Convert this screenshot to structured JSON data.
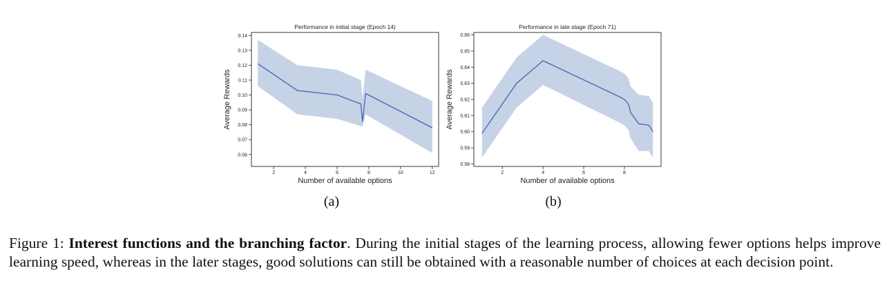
{
  "chart_data": [
    {
      "type": "line",
      "title": "Performance in initial stage (Epoch 14)",
      "xlabel": "Number of available options",
      "ylabel": "Average Rewards",
      "xlim": [
        0.6,
        12.4
      ],
      "ylim": [
        0.052,
        0.142
      ],
      "xticks": [
        2,
        4,
        6,
        8,
        10,
        12
      ],
      "yticks": [
        0.06,
        0.07,
        0.08,
        0.09,
        0.1,
        0.11,
        0.12,
        0.13,
        0.14
      ],
      "ytick_labels": [
        "0.06",
        "0.07",
        "0.08",
        "0.09",
        "0.10",
        "0.11",
        "0.12",
        "0.13",
        "0.14"
      ],
      "color": "#3f66b5",
      "band_color": "#c6d2e6",
      "series": [
        {
          "x": [
            1.0,
            3.5,
            6.0,
            7.5,
            7.6,
            7.8,
            12.0
          ],
          "y": [
            0.121,
            0.103,
            0.1,
            0.094,
            0.082,
            0.101,
            0.078
          ],
          "upper": [
            0.137,
            0.12,
            0.117,
            0.11,
            0.098,
            0.117,
            0.096
          ],
          "lower": [
            0.106,
            0.087,
            0.084,
            0.079,
            0.079,
            0.087,
            0.061
          ]
        }
      ],
      "grid": false
    },
    {
      "type": "line",
      "title": "Performance in late stage (Epoch 71)",
      "xlabel": "Number of available options",
      "ylabel": "Average Rewards",
      "xlim": [
        0.6,
        9.8
      ],
      "ylim": [
        0.5785,
        0.6615
      ],
      "xticks": [
        2,
        4,
        6,
        8
      ],
      "yticks": [
        0.58,
        0.59,
        0.6,
        0.61,
        0.62,
        0.63,
        0.64,
        0.65,
        0.66
      ],
      "ytick_labels": [
        "0.58",
        "0.59",
        "0.60",
        "0.61",
        "0.62",
        "0.63",
        "0.64",
        "0.65",
        "0.66"
      ],
      "color": "#3f66b5",
      "band_color": "#c6d2e6",
      "series": [
        {
          "x": [
            1.0,
            2.7,
            4.0,
            7.7,
            8.0,
            8.2,
            8.3,
            8.7,
            9.2,
            9.4
          ],
          "y": [
            0.599,
            0.63,
            0.644,
            0.622,
            0.62,
            0.617,
            0.612,
            0.605,
            0.604,
            0.6
          ],
          "upper": [
            0.615,
            0.646,
            0.66,
            0.638,
            0.636,
            0.633,
            0.628,
            0.623,
            0.622,
            0.618
          ],
          "lower": [
            0.584,
            0.615,
            0.629,
            0.606,
            0.604,
            0.601,
            0.596,
            0.588,
            0.588,
            0.584
          ]
        }
      ],
      "grid": false
    }
  ],
  "sublabels": {
    "a": "(a)",
    "b": "(b)"
  },
  "caption": {
    "prefix": "Figure 1: ",
    "bold": "Interest functions and the branching factor",
    "rest": ". During the initial stages of the learning process, allowing fewer options helps improve learning speed, whereas in the later stages, good solutions can still be obtained with a reasonable number of choices at each decision point."
  }
}
